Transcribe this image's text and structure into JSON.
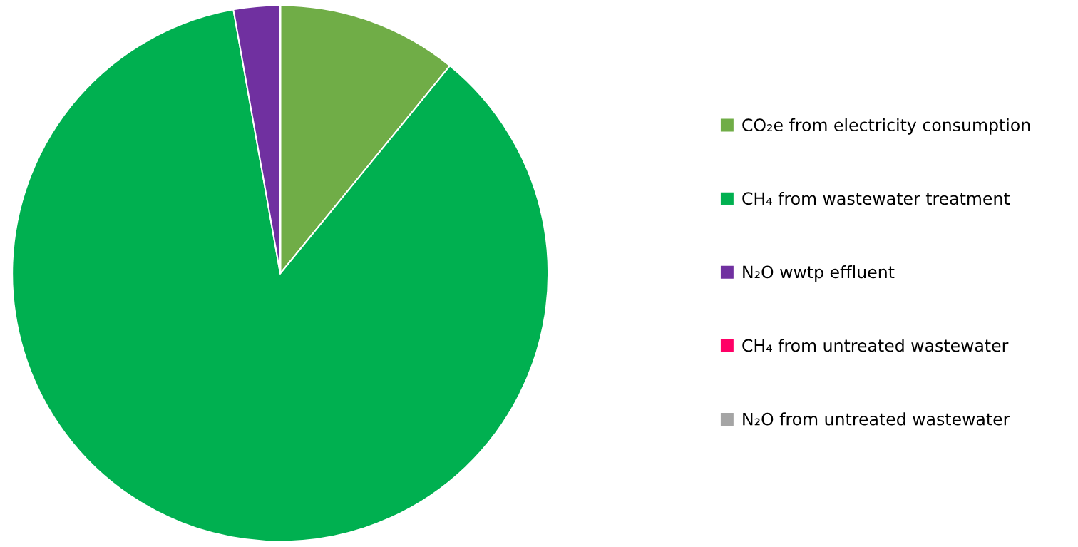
{
  "chart_data": {
    "type": "pie",
    "categories": [
      "CO₂e from electricity consumption",
      "CH₄ from wastewater treatment",
      "N₂O wwtp effluent",
      "CH₄ from untreated wastewater",
      "N₂O from untreated wastewater"
    ],
    "values": [
      10.9,
      86.3,
      2.8,
      0,
      0
    ],
    "colors": [
      "#70ad47",
      "#00b050",
      "#7030a0",
      "#ff0066",
      "#a5a5a5"
    ],
    "legend": "right"
  }
}
